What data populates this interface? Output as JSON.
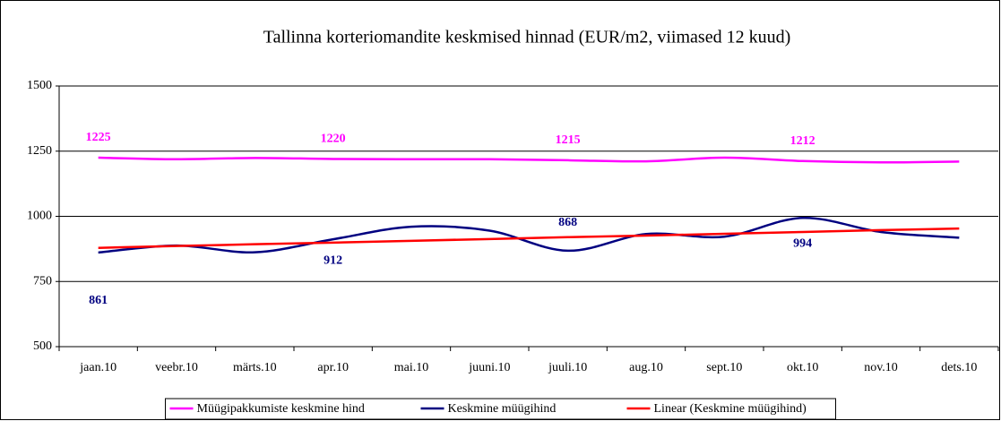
{
  "chart_data": {
    "type": "line",
    "title": "Tallinna korteriomandite keskmised hinnad (EUR/m2, viimased 12 kuud)",
    "categories": [
      "jaan.10",
      "veebr.10",
      "märts.10",
      "apr.10",
      "mai.10",
      "juuni.10",
      "juuli.10",
      "aug.10",
      "sept.10",
      "okt.10",
      "nov.10",
      "dets.10"
    ],
    "series": [
      {
        "name": "Müügipakkumiste keskmine hind",
        "color": "#ff00ff",
        "values": [
          1225,
          1219,
          1224,
          1220,
          1219,
          1219,
          1215,
          1211,
          1225,
          1212,
          1207,
          1210
        ],
        "value_labels": [
          "1225",
          null,
          null,
          "1220",
          null,
          null,
          "1215",
          null,
          null,
          "1212",
          null,
          null
        ]
      },
      {
        "name": "Keskmine müügihind",
        "color": "#000080",
        "values": [
          861,
          888,
          862,
          912,
          960,
          945,
          868,
          932,
          922,
          994,
          940,
          918
        ],
        "value_labels": [
          "861",
          null,
          null,
          "912",
          null,
          null,
          "868",
          null,
          null,
          "994",
          null,
          null
        ]
      },
      {
        "name": "Linear (Keskmine müügihind)",
        "color": "#ff0000",
        "values": [
          879,
          886,
          893,
          899,
          906,
          913,
          920,
          926,
          933,
          940,
          947,
          953
        ]
      }
    ],
    "ylim": [
      500,
      1500
    ],
    "yticks": [
      500,
      750,
      1000,
      1250,
      1500
    ],
    "grid": true,
    "legend": "bottom"
  }
}
